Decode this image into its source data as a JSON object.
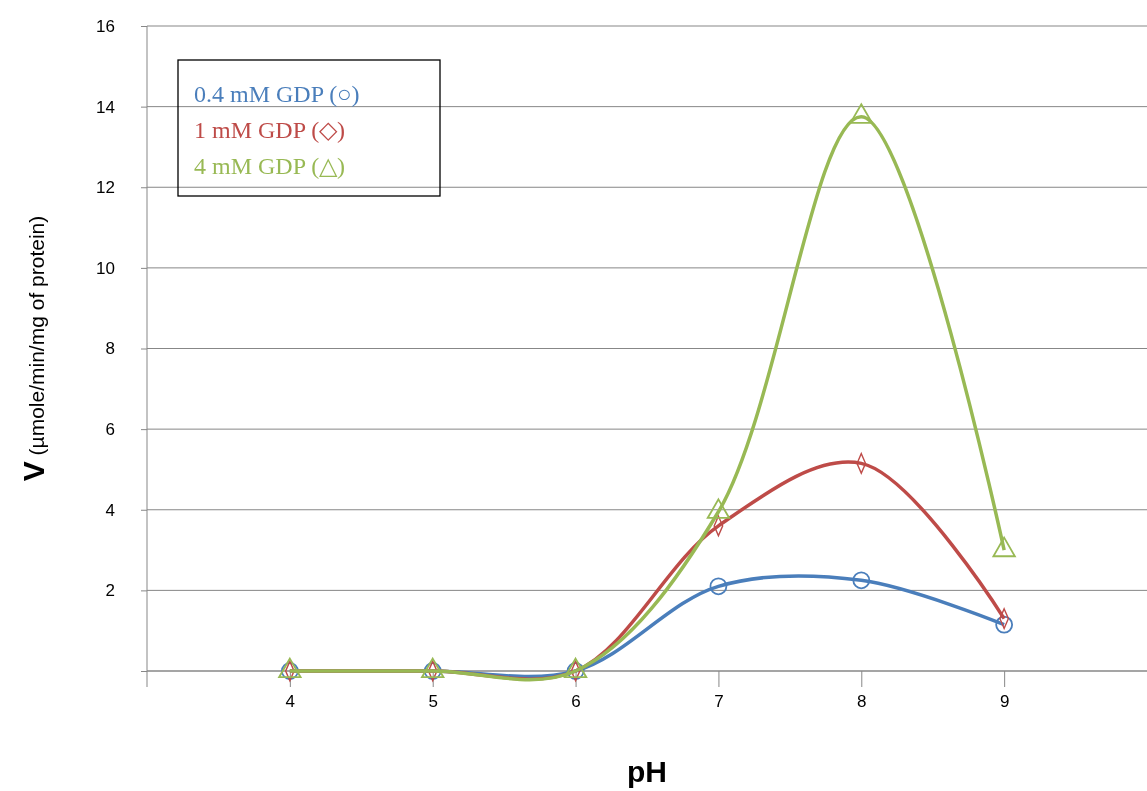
{
  "chart_data": {
    "type": "line",
    "xlabel": "pH",
    "ylabel": "V (µmole/min/mg of protein)",
    "xlim": [
      3,
      10
    ],
    "xticks": [
      4,
      5,
      6,
      7,
      8,
      9
    ],
    "ylim": [
      0,
      16
    ],
    "yticks": [
      {
        "value": 0,
        "label": null
      },
      2,
      4,
      6,
      8,
      10,
      12,
      14,
      16
    ],
    "grid": "y",
    "legend": "top left",
    "line_style": "solid",
    "x": [
      4,
      5,
      6,
      7,
      8,
      9
    ],
    "series": [
      {
        "name": "0.4 mM GDP (○)",
        "color": "#4a7ebb",
        "marker": "circle",
        "values": [
          0,
          0,
          0,
          2.1,
          2.25,
          1.15
        ]
      },
      {
        "name": "1 mM GDP (◇)",
        "color": "#be4b48",
        "marker": "diamond",
        "values": [
          0,
          0,
          0,
          3.6,
          5.15,
          1.3
        ]
      },
      {
        "name": "4 mM GDP (△)",
        "color": "#98b954",
        "marker": "triangle",
        "values": [
          0,
          0,
          0,
          3.95,
          13.75,
          3.0
        ]
      }
    ]
  }
}
